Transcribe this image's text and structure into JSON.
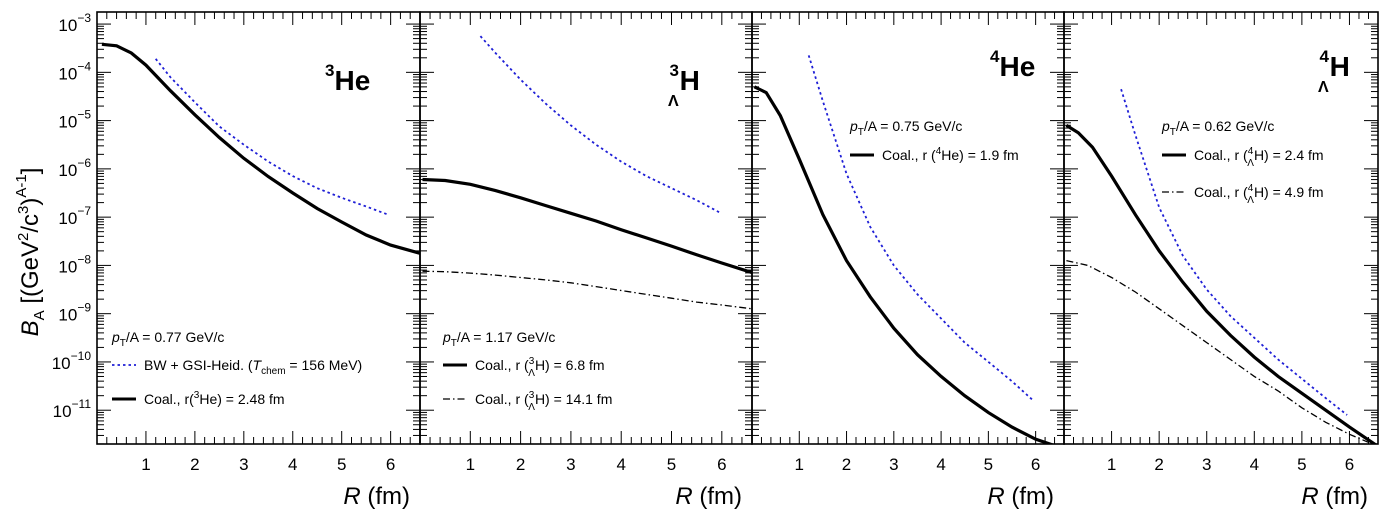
{
  "chart_data": [
    {
      "type": "line",
      "panel_label": {
        "sup": "3",
        "main": "He",
        "sub": ""
      },
      "xlabel": {
        "var": "R",
        "unit": "(fm)"
      },
      "ylabel": {
        "var": "B",
        "sub": "A",
        "rest": "[(GeV",
        "sq": "2",
        "slash": "/c",
        "cube": "3",
        "close": ")",
        "pow": "A-1",
        "end": "]"
      },
      "xlim": [
        0,
        6.6
      ],
      "ylim_log10": [
        -11.7,
        -2.75
      ],
      "x_ticks": [
        "1",
        "2",
        "3",
        "4",
        "5",
        "6"
      ],
      "y_ticks": [
        {
          "exp": -3,
          "base": "10",
          "pow": "−3"
        },
        {
          "exp": -4,
          "base": "10",
          "pow": "−4"
        },
        {
          "exp": -5,
          "base": "10",
          "pow": "−5"
        },
        {
          "exp": -6,
          "base": "10",
          "pow": "−6"
        },
        {
          "exp": -7,
          "base": "10",
          "pow": "−7"
        },
        {
          "exp": -8,
          "base": "10",
          "pow": "−8"
        },
        {
          "exp": -9,
          "base": "10",
          "pow": "−9"
        },
        {
          "exp": -10,
          "base": "10",
          "pow": "−10"
        },
        {
          "exp": -11,
          "base": "10",
          "pow": "−11"
        }
      ],
      "annotations": {
        "pt": {
          "p": "p",
          "T": "T",
          "rest": "/A = 0.77 GeV/c"
        },
        "legend": [
          {
            "style": "dotted-blue",
            "pre": "BW + GSI-Heid. (",
            "T": "T",
            "chem": "chem",
            "post": " = 156 MeV)"
          },
          {
            "style": "solid",
            "pre": "Coal., r(",
            "sup": "3",
            "nuc": "He) = 2.48 fm"
          }
        ]
      },
      "series": [
        {
          "style": "solid",
          "x": [
            0.1,
            0.4,
            0.7,
            1.0,
            1.5,
            2.0,
            2.5,
            3.0,
            3.5,
            4.0,
            4.5,
            5.0,
            5.5,
            6.0,
            6.6
          ],
          "log10y": [
            -3.42,
            -3.45,
            -3.6,
            -3.85,
            -4.38,
            -4.88,
            -5.35,
            -5.78,
            -6.16,
            -6.5,
            -6.82,
            -7.1,
            -7.37,
            -7.58,
            -7.75
          ]
        },
        {
          "style": "dotted-blue",
          "x": [
            1.2,
            1.5,
            2.0,
            2.5,
            3.0,
            3.5,
            4.0,
            4.5,
            5.0,
            5.5,
            5.95
          ],
          "log10y": [
            -3.72,
            -4.1,
            -4.62,
            -5.12,
            -5.5,
            -5.85,
            -6.15,
            -6.4,
            -6.6,
            -6.78,
            -6.95
          ]
        }
      ]
    },
    {
      "type": "line",
      "panel_label": {
        "sup": "3",
        "main": "H",
        "sub": "Λ"
      },
      "xlabel": {
        "var": "R",
        "unit": "(fm)"
      },
      "xlim": [
        0,
        6.6
      ],
      "ylim_log10": [
        -11.7,
        -2.75
      ],
      "x_ticks": [
        "1",
        "2",
        "3",
        "4",
        "5",
        "6"
      ],
      "annotations": {
        "pt": {
          "p": "p",
          "T": "T",
          "rest": "/A = 1.17 GeV/c"
        },
        "legend": [
          {
            "style": "solid",
            "pre": "Coal., r (",
            "sup": "3",
            "sub": "Λ",
            "nuc": "H) = 6.8 fm"
          },
          {
            "style": "dashdot",
            "pre": "Coal., r (",
            "sup": "3",
            "sub": "Λ",
            "nuc": "H) = 14.1 fm"
          }
        ]
      },
      "series": [
        {
          "style": "solid",
          "x": [
            0.05,
            0.5,
            1.0,
            1.5,
            2.0,
            2.5,
            3.0,
            3.5,
            4.0,
            4.5,
            5.0,
            5.5,
            6.0,
            6.6
          ],
          "log10y": [
            -6.22,
            -6.24,
            -6.32,
            -6.45,
            -6.6,
            -6.76,
            -6.92,
            -7.08,
            -7.26,
            -7.43,
            -7.6,
            -7.78,
            -7.95,
            -8.15
          ]
        },
        {
          "style": "dashdot",
          "x": [
            0.05,
            0.5,
            1.0,
            1.5,
            2.0,
            2.5,
            3.0,
            3.5,
            4.0,
            4.5,
            5.0,
            5.5,
            6.0,
            6.6
          ],
          "log10y": [
            -8.12,
            -8.13,
            -8.16,
            -8.2,
            -8.25,
            -8.3,
            -8.36,
            -8.44,
            -8.52,
            -8.6,
            -8.68,
            -8.76,
            -8.82,
            -8.9
          ]
        },
        {
          "style": "dotted-blue",
          "x": [
            1.2,
            1.5,
            2.0,
            2.5,
            3.0,
            3.5,
            4.0,
            4.5,
            5.0,
            5.5,
            5.95
          ],
          "log10y": [
            -3.25,
            -3.6,
            -4.15,
            -4.65,
            -5.1,
            -5.5,
            -5.85,
            -6.15,
            -6.4,
            -6.65,
            -6.9
          ]
        }
      ]
    },
    {
      "type": "line",
      "panel_label": {
        "sup": "4",
        "main": "He",
        "sub": ""
      },
      "xlabel": {
        "var": "R",
        "unit": "(fm)"
      },
      "xlim": [
        0,
        6.6
      ],
      "ylim_log10": [
        -11.7,
        -2.75
      ],
      "x_ticks": [
        "1",
        "2",
        "3",
        "4",
        "5",
        "6"
      ],
      "annotations": {
        "pt": {
          "p": "p",
          "T": "T",
          "rest": "/A = 0.75 GeV/c"
        },
        "legend": [
          {
            "style": "solid",
            "pre": "Coal., r (",
            "sup": "4",
            "nuc": "He) = 1.9 fm"
          }
        ]
      },
      "series": [
        {
          "style": "solid",
          "x": [
            0.05,
            0.3,
            0.6,
            1.0,
            1.5,
            2.0,
            2.5,
            3.0,
            3.5,
            4.0,
            4.5,
            5.0,
            5.5,
            6.0,
            6.6
          ],
          "log10y": [
            -4.3,
            -4.42,
            -4.9,
            -5.8,
            -6.95,
            -7.9,
            -8.65,
            -9.3,
            -9.85,
            -10.3,
            -10.7,
            -11.05,
            -11.35,
            -11.6,
            -11.8
          ]
        },
        {
          "style": "dotted-blue",
          "x": [
            1.2,
            1.5,
            2.0,
            2.5,
            3.0,
            3.5,
            4.0,
            4.5,
            5.0,
            5.5,
            5.95
          ],
          "log10y": [
            -3.65,
            -4.6,
            -6.1,
            -7.2,
            -8.0,
            -8.6,
            -9.1,
            -9.6,
            -10.0,
            -10.4,
            -10.8
          ]
        }
      ]
    },
    {
      "type": "line",
      "panel_label": {
        "sup": "4",
        "main": "H",
        "sub": "Λ"
      },
      "xlabel": {
        "var": "R",
        "unit": "(fm)"
      },
      "xlim": [
        0,
        6.6
      ],
      "ylim_log10": [
        -11.7,
        -2.75
      ],
      "x_ticks": [
        "1",
        "2",
        "3",
        "4",
        "5",
        "6"
      ],
      "annotations": {
        "pt": {
          "p": "p",
          "T": "T",
          "rest": "/A = 0.62 GeV/c"
        },
        "legend": [
          {
            "style": "solid",
            "pre": "Coal., r (",
            "sup": "4",
            "sub": "Λ",
            "nuc": "H) = 2.4 fm"
          },
          {
            "style": "dashdot",
            "pre": "Coal., r (",
            "sup": "4",
            "sub": "Λ",
            "nuc": "H) = 4.9 fm"
          }
        ]
      },
      "series": [
        {
          "style": "solid",
          "x": [
            0.05,
            0.3,
            0.6,
            1.0,
            1.5,
            2.0,
            2.5,
            3.0,
            3.5,
            4.0,
            4.5,
            5.0,
            5.5,
            6.0,
            6.6
          ],
          "log10y": [
            -5.1,
            -5.25,
            -5.55,
            -6.15,
            -6.95,
            -7.7,
            -8.35,
            -8.95,
            -9.45,
            -9.9,
            -10.3,
            -10.65,
            -11.0,
            -11.35,
            -11.75
          ]
        },
        {
          "style": "dashdot",
          "x": [
            0.05,
            0.5,
            1.0,
            1.5,
            2.0,
            2.5,
            3.0,
            3.5,
            4.0,
            4.5,
            5.0,
            5.5,
            6.0,
            6.6
          ],
          "log10y": [
            -7.9,
            -8.0,
            -8.25,
            -8.55,
            -8.9,
            -9.25,
            -9.6,
            -9.95,
            -10.3,
            -10.6,
            -10.95,
            -11.25,
            -11.5,
            -11.75
          ]
        },
        {
          "style": "dotted-blue",
          "x": [
            1.2,
            1.5,
            2.0,
            2.5,
            3.0,
            3.5,
            4.0,
            4.5,
            5.0,
            5.5,
            5.95
          ],
          "log10y": [
            -4.35,
            -5.3,
            -6.8,
            -7.8,
            -8.5,
            -9.05,
            -9.5,
            -9.95,
            -10.35,
            -10.75,
            -11.1
          ]
        }
      ]
    }
  ]
}
